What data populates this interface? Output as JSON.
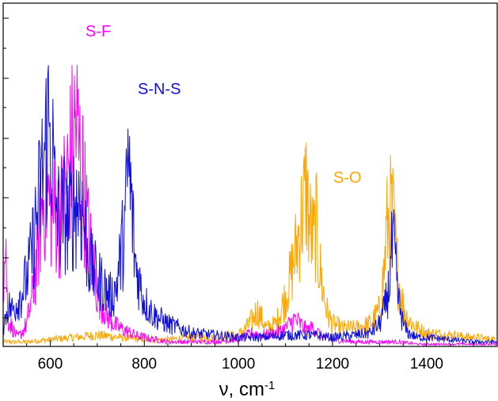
{
  "chart_data": {
    "type": "line",
    "title": "",
    "xlabel": "ν, cm",
    "xlabel_superscript": "-1",
    "ylabel": "",
    "xlim": [
      500,
      1550
    ],
    "ylim": [
      0,
      1
    ],
    "x_ticks": [
      600,
      800,
      1000,
      1200,
      1400
    ],
    "x_tick_labels": [
      "600",
      "800",
      "1000",
      "1200",
      "1400"
    ],
    "y_tick_labels_shown": false,
    "grid": false,
    "legend": "none",
    "annotations": [
      {
        "text": "S-F",
        "x": 705,
        "y": 0.92,
        "color": "#ff00ff"
      },
      {
        "text": "S-N-S",
        "x": 770,
        "y": 0.75,
        "color": "#1010dd"
      },
      {
        "text": "S-O",
        "x": 1185,
        "y": 0.52,
        "color": "#ffa500"
      }
    ],
    "series": [
      {
        "color": "#ff00ff",
        "x": [
          500,
          505,
          510,
          520,
          530,
          540,
          550,
          560,
          570,
          580,
          590,
          600,
          610,
          620,
          630,
          640,
          650,
          655,
          660,
          665,
          670,
          680,
          690,
          700,
          720,
          740,
          760,
          780,
          800,
          850,
          900,
          950,
          1000,
          1030,
          1050,
          1080,
          1100,
          1110,
          1120,
          1130,
          1140,
          1150,
          1160,
          1170,
          1180,
          1200,
          1250,
          1300,
          1320,
          1340,
          1380,
          1450,
          1550
        ],
        "values": [
          0.28,
          0.45,
          0.12,
          0.08,
          0.04,
          0.06,
          0.1,
          0.2,
          0.35,
          0.55,
          0.7,
          0.62,
          0.58,
          0.55,
          0.7,
          0.78,
          0.92,
          1.0,
          0.88,
          0.82,
          0.72,
          0.52,
          0.36,
          0.24,
          0.14,
          0.09,
          0.07,
          0.05,
          0.04,
          0.02,
          0.02,
          0.02,
          0.03,
          0.06,
          0.05,
          0.06,
          0.08,
          0.1,
          0.12,
          0.1,
          0.08,
          0.07,
          0.09,
          0.06,
          0.04,
          0.03,
          0.02,
          0.02,
          0.02,
          0.02,
          0.01,
          0.01,
          0.01
        ]
      },
      {
        "color": "#1010dd",
        "x": [
          500,
          510,
          520,
          530,
          540,
          550,
          560,
          570,
          580,
          590,
          595,
          600,
          605,
          610,
          620,
          630,
          640,
          650,
          660,
          670,
          680,
          690,
          700,
          710,
          720,
          730,
          740,
          750,
          760,
          765,
          770,
          775,
          780,
          790,
          800,
          820,
          850,
          900,
          950,
          1000,
          1050,
          1100,
          1150,
          1200,
          1250,
          1280,
          1300,
          1310,
          1320,
          1325,
          1330,
          1335,
          1340,
          1350,
          1360,
          1380,
          1400,
          1450,
          1500,
          1550
        ],
        "values": [
          0.08,
          0.18,
          0.16,
          0.2,
          0.24,
          0.3,
          0.4,
          0.55,
          0.7,
          0.88,
          0.97,
          0.93,
          0.85,
          0.65,
          0.55,
          0.6,
          0.55,
          0.62,
          0.66,
          0.58,
          0.4,
          0.34,
          0.3,
          0.28,
          0.24,
          0.22,
          0.26,
          0.4,
          0.55,
          0.82,
          0.7,
          0.56,
          0.38,
          0.28,
          0.2,
          0.14,
          0.1,
          0.06,
          0.05,
          0.04,
          0.04,
          0.05,
          0.05,
          0.04,
          0.05,
          0.06,
          0.1,
          0.16,
          0.26,
          0.4,
          0.43,
          0.32,
          0.2,
          0.1,
          0.06,
          0.04,
          0.04,
          0.03,
          0.02,
          0.02
        ]
      },
      {
        "color": "#ffa500",
        "x": [
          500,
          550,
          600,
          650,
          700,
          750,
          800,
          850,
          900,
          950,
          1000,
          1020,
          1030,
          1040,
          1050,
          1060,
          1080,
          1090,
          1100,
          1110,
          1120,
          1130,
          1140,
          1145,
          1150,
          1160,
          1165,
          1170,
          1180,
          1190,
          1200,
          1220,
          1250,
          1280,
          1300,
          1310,
          1315,
          1320,
          1325,
          1330,
          1335,
          1340,
          1350,
          1360,
          1380,
          1400,
          1450,
          1500,
          1550
        ],
        "values": [
          0.02,
          0.02,
          0.03,
          0.04,
          0.05,
          0.04,
          0.03,
          0.03,
          0.04,
          0.04,
          0.05,
          0.09,
          0.12,
          0.16,
          0.12,
          0.08,
          0.1,
          0.16,
          0.22,
          0.3,
          0.4,
          0.52,
          0.64,
          0.7,
          0.55,
          0.46,
          0.55,
          0.4,
          0.24,
          0.14,
          0.1,
          0.08,
          0.08,
          0.1,
          0.16,
          0.34,
          0.52,
          0.55,
          0.6,
          0.54,
          0.4,
          0.3,
          0.18,
          0.12,
          0.08,
          0.06,
          0.05,
          0.04,
          0.03
        ]
      }
    ]
  }
}
